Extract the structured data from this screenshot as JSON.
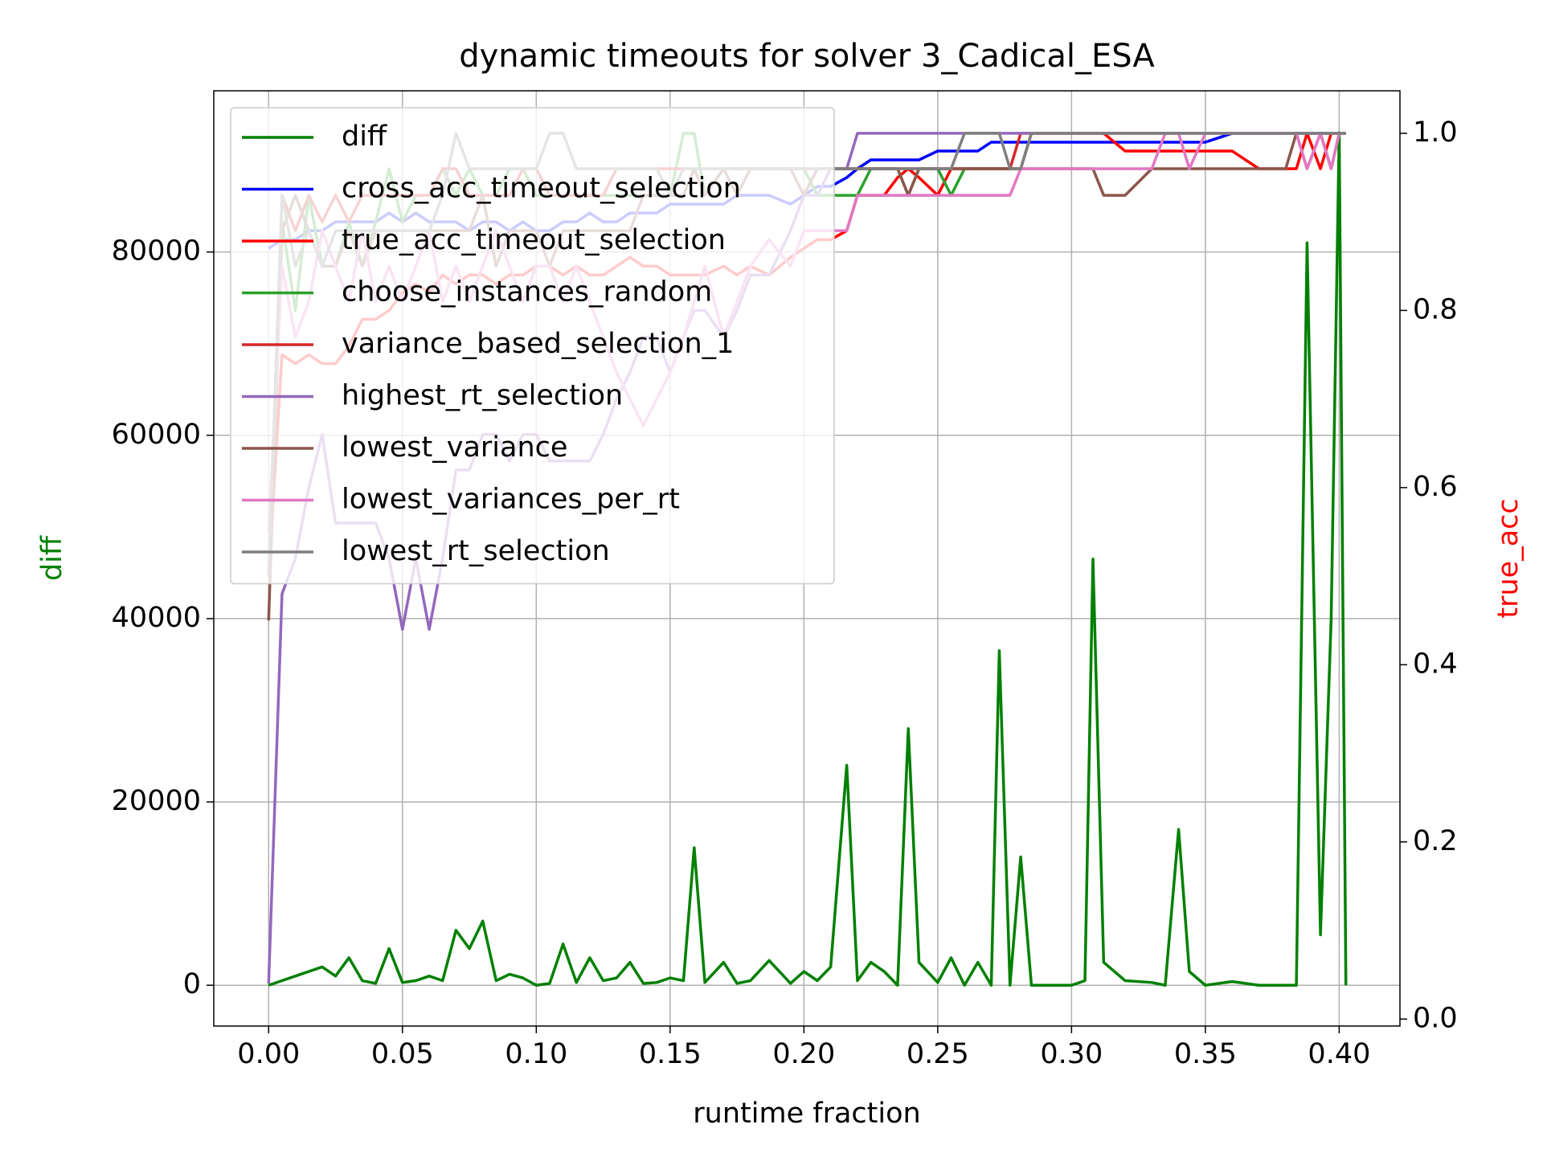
{
  "chart_data": {
    "type": "line",
    "title": "dynamic timeouts for solver 3_Cadical_ESA",
    "x_label": "runtime fraction",
    "y_label": "diff",
    "y2_label": "true_acc",
    "grid": true,
    "legend": "upper left",
    "xlim": [
      -0.0205,
      0.4227
    ],
    "xticks": [
      {
        "value": 0,
        "label": "0.00"
      },
      {
        "value": 0.05,
        "label": "0.05"
      },
      {
        "value": 0.1,
        "label": "0.10"
      },
      {
        "value": 0.15,
        "label": "0.15"
      },
      {
        "value": 0.2,
        "label": "0.20"
      },
      {
        "value": 0.25,
        "label": "0.25"
      },
      {
        "value": 0.3,
        "label": "0.30"
      },
      {
        "value": 0.35,
        "label": "0.35"
      },
      {
        "value": 0.4,
        "label": "0.40"
      }
    ],
    "ylim": [
      -4450,
      97585
    ],
    "yticks": [
      0,
      20000,
      40000,
      60000,
      80000
    ],
    "y2lim": [
      -0.0079,
      1.048
    ],
    "y2ticks": [
      {
        "value": 0,
        "label": "0.0"
      },
      {
        "value": 0.2,
        "label": "0.2"
      },
      {
        "value": 0.4,
        "label": "0.4"
      },
      {
        "value": 0.6,
        "label": "0.6"
      },
      {
        "value": 0.8,
        "label": "0.8"
      },
      {
        "value": 1,
        "label": "1.0"
      }
    ],
    "x": [
      0,
      0.005,
      0.01,
      0.015,
      0.02,
      0.025,
      0.03,
      0.035,
      0.04,
      0.045,
      0.05,
      0.055,
      0.06,
      0.065,
      0.07,
      0.075,
      0.08,
      0.085,
      0.09,
      0.095,
      0.1,
      0.105,
      0.11,
      0.115,
      0.12,
      0.125,
      0.13,
      0.135,
      0.14,
      0.145,
      0.15,
      0.155,
      0.159,
      0.163,
      0.17,
      0.175,
      0.18,
      0.187,
      0.195,
      0.2,
      0.205,
      0.21,
      0.216,
      0.22,
      0.225,
      0.23,
      0.235,
      0.239,
      0.243,
      0.25,
      0.255,
      0.26,
      0.265,
      0.27,
      0.273,
      0.277,
      0.281,
      0.285,
      0.29,
      0.3,
      0.305,
      0.308,
      0.312,
      0.32,
      0.33,
      0.335,
      0.34,
      0.344,
      0.35,
      0.36,
      0.37,
      0.38,
      0.384,
      0.388,
      0.393,
      0.397,
      0.4,
      0.4025
    ],
    "series": [
      {
        "name": "diff",
        "color": "#008000",
        "axis": "y",
        "values": [
          0,
          500,
          1000,
          1500,
          2000,
          1000,
          3000,
          500,
          200,
          4000,
          300,
          500,
          1000,
          500,
          6000,
          4000,
          7000,
          500,
          1200,
          800,
          0,
          200,
          4500,
          300,
          3000,
          500,
          800,
          2500,
          200,
          300,
          800,
          500,
          15000,
          300,
          2500,
          200,
          500,
          2700,
          200,
          1500,
          500,
          2000,
          24000,
          500,
          2500,
          1500,
          0,
          28000,
          2500,
          300,
          3000,
          0,
          2500,
          0,
          36500,
          0,
          14000,
          0,
          0,
          0,
          500,
          46500,
          2500,
          500,
          300,
          0,
          17000,
          1500,
          0,
          400,
          0,
          0,
          0,
          81000,
          5500,
          40000,
          93000,
          0
        ]
      },
      {
        "name": "cross_acc_timeout_selection",
        "color": "#0000ff",
        "axis": "y2",
        "values": [
          0.87,
          0.88,
          0.88,
          0.89,
          0.89,
          0.9,
          0.9,
          0.9,
          0.9,
          0.91,
          0.9,
          0.91,
          0.9,
          0.9,
          0.9,
          0.89,
          0.9,
          0.9,
          0.89,
          0.9,
          0.89,
          0.89,
          0.9,
          0.9,
          0.91,
          0.9,
          0.9,
          0.91,
          0.91,
          0.91,
          0.92,
          0.92,
          0.92,
          0.92,
          0.92,
          0.93,
          0.93,
          0.93,
          0.92,
          0.93,
          0.94,
          0.94,
          0.95,
          0.96,
          0.97,
          0.97,
          0.97,
          0.97,
          0.97,
          0.98,
          0.98,
          0.98,
          0.98,
          0.99,
          0.99,
          0.99,
          0.99,
          0.99,
          0.99,
          0.99,
          0.99,
          0.99,
          0.99,
          0.99,
          0.99,
          0.99,
          0.99,
          0.99,
          0.99,
          1.0,
          1.0,
          1.0,
          1.0,
          1.0,
          1.0,
          1.0,
          1.0,
          1.0
        ]
      },
      {
        "name": "true_acc_timeout_selection",
        "color": "#ff0000",
        "axis": "y2",
        "values": [
          0.5,
          0.75,
          0.74,
          0.75,
          0.74,
          0.74,
          0.76,
          0.79,
          0.79,
          0.8,
          0.82,
          0.83,
          0.82,
          0.84,
          0.83,
          0.84,
          0.84,
          0.83,
          0.84,
          0.84,
          0.85,
          0.85,
          0.84,
          0.85,
          0.84,
          0.84,
          0.85,
          0.86,
          0.85,
          0.85,
          0.84,
          0.84,
          0.84,
          0.84,
          0.85,
          0.84,
          0.85,
          0.84,
          0.86,
          0.87,
          0.88,
          0.88,
          0.89,
          0.93,
          0.93,
          0.93,
          0.95,
          0.96,
          0.95,
          0.93,
          0.96,
          0.96,
          0.96,
          0.96,
          0.96,
          0.96,
          0.96,
          1.0,
          1.0,
          1.0,
          1.0,
          1.0,
          1.0,
          0.98,
          0.98,
          0.98,
          0.98,
          0.98,
          0.98,
          0.98,
          0.96,
          0.96,
          0.96,
          1.0,
          0.96,
          1.0,
          1.0,
          1.0
        ]
      },
      {
        "name": "choose_instances_random",
        "color": "#2ca02c",
        "axis": "y2",
        "values": [
          0.5,
          0.9,
          0.8,
          0.93,
          0.85,
          0.85,
          0.9,
          0.85,
          0.9,
          0.96,
          0.9,
          0.93,
          0.93,
          0.96,
          0.93,
          0.96,
          0.93,
          0.93,
          0.96,
          0.96,
          0.93,
          0.93,
          0.93,
          0.93,
          0.93,
          0.93,
          0.93,
          0.93,
          0.93,
          0.93,
          0.93,
          1.0,
          1.0,
          0.93,
          0.96,
          0.96,
          0.96,
          0.96,
          0.96,
          0.96,
          0.93,
          0.93,
          0.93,
          0.93,
          0.96,
          0.96,
          0.96,
          0.93,
          0.96,
          0.96,
          0.93,
          0.96,
          0.96,
          0.96,
          0.96,
          0.96,
          0.96,
          1.0,
          1.0,
          1.0,
          1.0,
          1.0,
          1.0,
          1.0,
          1.0,
          1.0,
          1.0,
          1.0,
          1.0,
          1.0,
          1.0,
          1.0,
          1.0,
          1.0,
          1.0,
          1.0,
          1.0,
          1.0
        ]
      },
      {
        "name": "variance_based_selection_1",
        "color": "#d62728",
        "axis": "y2",
        "values": [
          0.5,
          0.93,
          0.89,
          0.93,
          0.9,
          0.93,
          0.9,
          0.93,
          0.93,
          0.93,
          0.93,
          0.93,
          0.93,
          0.96,
          0.96,
          0.93,
          0.93,
          0.93,
          0.93,
          0.96,
          0.96,
          0.93,
          0.93,
          0.93,
          0.93,
          0.93,
          0.96,
          0.96,
          0.96,
          0.96,
          0.96,
          0.96,
          0.96,
          0.96,
          0.96,
          0.96,
          0.96,
          0.96,
          0.96,
          0.96,
          0.96,
          0.96,
          0.96,
          0.96,
          0.96,
          0.96,
          0.96,
          0.96,
          0.96,
          0.96,
          0.96,
          0.96,
          0.96,
          0.96,
          0.96,
          0.96,
          1.0,
          1.0,
          1.0,
          1.0,
          1.0,
          1.0,
          1.0,
          1.0,
          1.0,
          1.0,
          1.0,
          1.0,
          1.0,
          1.0,
          1.0,
          1.0,
          1.0,
          1.0,
          1.0,
          1.0,
          1.0,
          1.0
        ]
      },
      {
        "name": "highest_rt_selection",
        "color": "#9467bd",
        "axis": "y2",
        "values": [
          0.04,
          0.48,
          0.52,
          0.6,
          0.66,
          0.56,
          0.56,
          0.56,
          0.56,
          0.52,
          0.44,
          0.52,
          0.44,
          0.52,
          0.62,
          0.62,
          0.66,
          0.66,
          0.63,
          0.66,
          0.66,
          0.63,
          0.63,
          0.63,
          0.63,
          0.66,
          0.7,
          0.73,
          0.77,
          0.77,
          0.73,
          0.77,
          0.8,
          0.8,
          0.77,
          0.8,
          0.84,
          0.84,
          0.89,
          0.93,
          0.93,
          0.96,
          0.96,
          1.0,
          1.0,
          1.0,
          1.0,
          1.0,
          1.0,
          1.0,
          1.0,
          1.0,
          1.0,
          1.0,
          1.0,
          1.0,
          1.0,
          1.0,
          1.0,
          1.0,
          1.0,
          1.0,
          1.0,
          1.0,
          1.0,
          1.0,
          1.0,
          1.0,
          1.0,
          1.0,
          1.0,
          1.0,
          1.0,
          1.0,
          1.0,
          1.0,
          1.0,
          1.0
        ]
      },
      {
        "name": "lowest_variance",
        "color": "#8c564b",
        "axis": "y2",
        "values": [
          0.45,
          0.89,
          0.93,
          0.89,
          0.85,
          0.85,
          0.89,
          0.85,
          0.89,
          0.89,
          0.89,
          0.89,
          0.89,
          0.89,
          0.89,
          0.89,
          0.93,
          0.85,
          0.89,
          0.89,
          0.89,
          0.85,
          0.89,
          0.89,
          0.89,
          0.89,
          0.89,
          0.89,
          0.93,
          0.93,
          0.93,
          0.93,
          0.96,
          0.93,
          0.96,
          0.93,
          0.96,
          0.96,
          0.96,
          0.93,
          0.96,
          0.96,
          0.96,
          0.96,
          0.96,
          0.96,
          0.96,
          0.93,
          0.96,
          0.96,
          0.96,
          0.96,
          0.96,
          0.96,
          0.96,
          0.96,
          0.96,
          0.96,
          0.96,
          0.96,
          0.96,
          0.96,
          0.93,
          0.93,
          0.96,
          0.96,
          0.96,
          0.96,
          0.96,
          0.96,
          0.96,
          0.96,
          1.0,
          0.96,
          1.0,
          0.96,
          1.0,
          1.0
        ]
      },
      {
        "name": "lowest_variances_per_rt",
        "color": "#e377c2",
        "axis": "y2",
        "values": [
          0.55,
          0.85,
          0.77,
          0.81,
          0.89,
          0.85,
          0.81,
          0.89,
          0.81,
          0.85,
          0.81,
          0.85,
          0.89,
          0.81,
          0.85,
          0.81,
          0.85,
          0.89,
          0.85,
          0.81,
          0.85,
          0.85,
          0.81,
          0.85,
          0.81,
          0.77,
          0.73,
          0.7,
          0.67,
          0.7,
          0.73,
          0.77,
          0.81,
          0.85,
          0.77,
          0.81,
          0.85,
          0.88,
          0.85,
          0.89,
          0.89,
          0.89,
          0.89,
          0.93,
          0.93,
          0.93,
          0.93,
          0.93,
          0.93,
          0.93,
          0.93,
          0.93,
          0.93,
          0.93,
          0.93,
          0.93,
          0.96,
          0.96,
          0.96,
          0.96,
          0.96,
          0.96,
          0.96,
          0.96,
          0.96,
          1.0,
          1.0,
          0.96,
          1.0,
          1.0,
          1.0,
          1.0,
          1.0,
          0.96,
          1.0,
          0.96,
          1.0,
          1.0
        ]
      },
      {
        "name": "lowest_rt_selection",
        "color": "#7f7f7f",
        "axis": "y2",
        "values": [
          0.5,
          0.93,
          0.85,
          0.89,
          0.85,
          0.89,
          0.89,
          0.89,
          0.89,
          0.89,
          0.89,
          0.89,
          0.89,
          0.93,
          1.0,
          0.96,
          0.96,
          0.96,
          0.96,
          0.96,
          0.96,
          1.0,
          1.0,
          0.96,
          0.96,
          0.96,
          0.96,
          0.96,
          0.96,
          0.96,
          0.93,
          0.96,
          0.96,
          0.96,
          0.96,
          0.96,
          0.96,
          0.96,
          0.96,
          0.96,
          0.96,
          0.96,
          0.96,
          0.96,
          0.96,
          0.96,
          0.96,
          0.96,
          0.96,
          0.96,
          0.96,
          1.0,
          1.0,
          1.0,
          1.0,
          0.96,
          0.96,
          1.0,
          1.0,
          1.0,
          1.0,
          1.0,
          1.0,
          1.0,
          1.0,
          1.0,
          1.0,
          1.0,
          1.0,
          1.0,
          1.0,
          1.0,
          1.0,
          1.0,
          1.0,
          1.0,
          1.0,
          1.0
        ]
      }
    ]
  }
}
